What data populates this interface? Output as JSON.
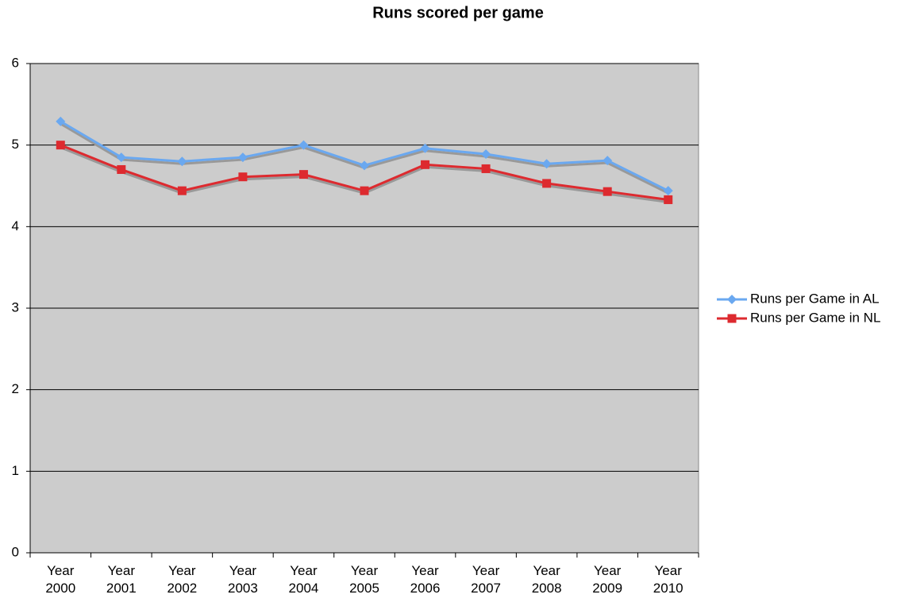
{
  "chart_data": {
    "type": "line",
    "title": "Runs scored per game",
    "categories": [
      "Year 2000",
      "Year 2001",
      "Year 2002",
      "Year 2003",
      "Year 2004",
      "Year 2005",
      "Year 2006",
      "Year 2007",
      "Year 2008",
      "Year 2009",
      "Year 2010"
    ],
    "series": [
      {
        "name": "Runs per Game in AL",
        "color": "#6aa8f0",
        "marker": "diamond",
        "values": [
          5.29,
          4.85,
          4.8,
          4.85,
          5.0,
          4.75,
          4.96,
          4.89,
          4.77,
          4.81,
          4.44
        ]
      },
      {
        "name": "Runs per Game in NL",
        "color": "#dd2a2f",
        "marker": "square",
        "values": [
          5.0,
          4.7,
          4.44,
          4.61,
          4.64,
          4.44,
          4.76,
          4.71,
          4.53,
          4.43,
          4.33
        ]
      }
    ],
    "ylim": [
      0,
      6
    ],
    "yticks": [
      0,
      1,
      2,
      3,
      4,
      5,
      6
    ],
    "grid": true,
    "legend": "right"
  }
}
